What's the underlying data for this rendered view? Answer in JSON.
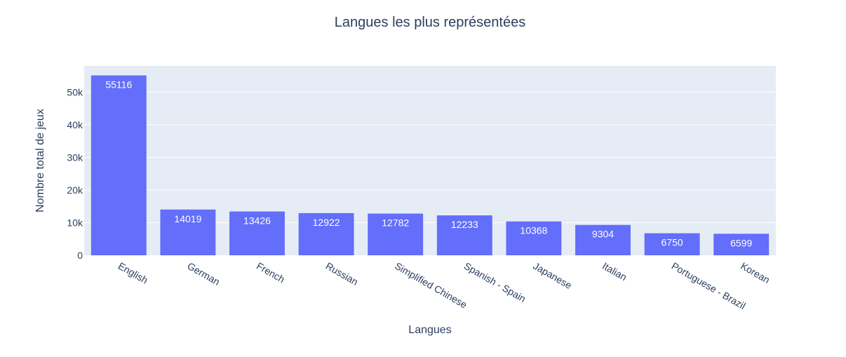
{
  "chart_data": {
    "type": "bar",
    "title": "Langues les plus représentées",
    "xlabel": "Langues",
    "ylabel": "Nombre total de jeux",
    "categories": [
      "English",
      "German",
      "French",
      "Russian",
      "Simplified Chinese",
      "Spanish - Spain",
      "Japanese",
      "Italian",
      "Portuguese - Brazil",
      "Korean"
    ],
    "values": [
      55116,
      14019,
      13426,
      12922,
      12782,
      12233,
      10368,
      9304,
      6750,
      6599
    ],
    "data_labels": [
      "55116",
      "14019",
      "13426",
      "12922",
      "12782",
      "12233",
      "10368",
      "9304",
      "6750",
      "6599"
    ],
    "y_ticks": [
      0,
      10000,
      20000,
      30000,
      40000,
      50000
    ],
    "y_tick_labels": [
      "0",
      "10k",
      "20k",
      "30k",
      "40k",
      "50k"
    ],
    "ylim": [
      0,
      58017
    ],
    "grid": true,
    "colors": {
      "bar": "#636efa",
      "plot_bg": "#e5ecf6",
      "grid": "#ffffff",
      "text": "#2a3f5f"
    }
  }
}
